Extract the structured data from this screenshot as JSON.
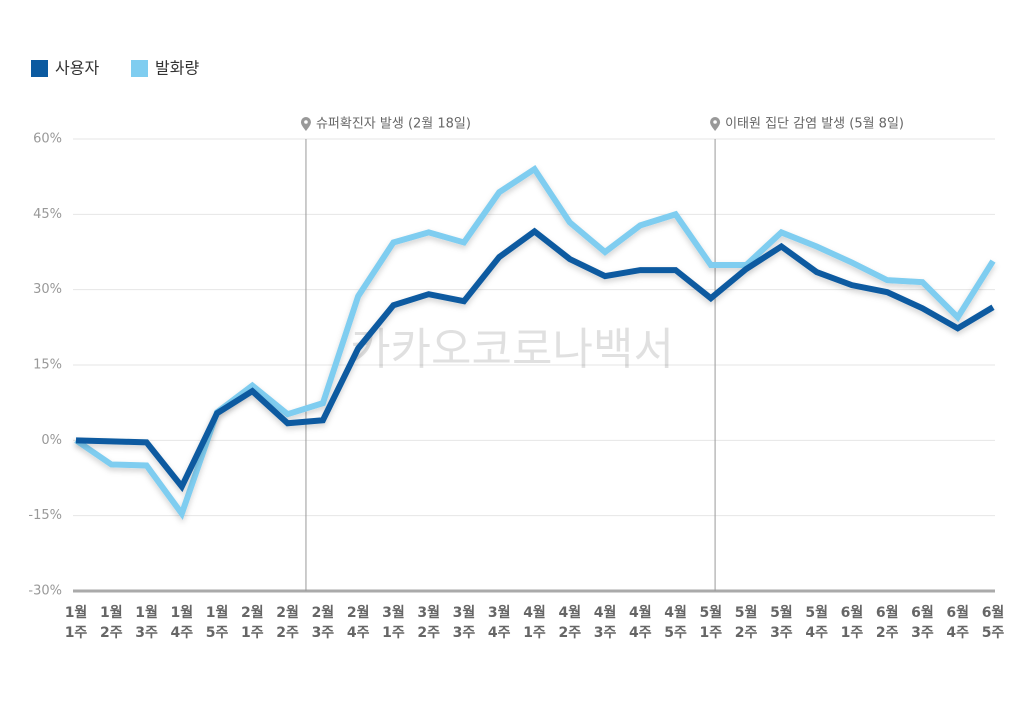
{
  "chart_data": {
    "type": "line",
    "legend_position": "top-left",
    "grid": true,
    "watermark": "카카오코로나백서",
    "categories": [
      [
        "1월",
        "1주"
      ],
      [
        "1월",
        "2주"
      ],
      [
        "1월",
        "3주"
      ],
      [
        "1월",
        "4주"
      ],
      [
        "1월",
        "5주"
      ],
      [
        "2월",
        "1주"
      ],
      [
        "2월",
        "2주"
      ],
      [
        "2월",
        "3주"
      ],
      [
        "2월",
        "4주"
      ],
      [
        "3월",
        "1주"
      ],
      [
        "3월",
        "2주"
      ],
      [
        "3월",
        "3주"
      ],
      [
        "3월",
        "4주"
      ],
      [
        "4월",
        "1주"
      ],
      [
        "4월",
        "2주"
      ],
      [
        "4월",
        "3주"
      ],
      [
        "4월",
        "4주"
      ],
      [
        "4월",
        "5주"
      ],
      [
        "5월",
        "1주"
      ],
      [
        "5월",
        "2주"
      ],
      [
        "5월",
        "3주"
      ],
      [
        "5월",
        "4주"
      ],
      [
        "6월",
        "1주"
      ],
      [
        "6월",
        "2주"
      ],
      [
        "6월",
        "3주"
      ],
      [
        "6월",
        "4주"
      ],
      [
        "6월",
        "5주"
      ]
    ],
    "series": [
      {
        "name": "사용자",
        "color": "#0b5aa0",
        "values": [
          0,
          -0.2,
          -0.4,
          -9.2,
          5.4,
          9.8,
          3.4,
          4.0,
          18.3,
          26.9,
          29.1,
          27.7,
          36.5,
          41.6,
          36.1,
          32.7,
          33.9,
          33.9,
          28.3,
          34.1,
          38.6,
          33.5,
          30.9,
          29.5,
          26.3,
          22.3,
          26.5
        ]
      },
      {
        "name": "발화량",
        "color": "#7fcdf0",
        "values": [
          0,
          -4.8,
          -5.0,
          -14.6,
          5.6,
          10.9,
          5.2,
          7.4,
          28.7,
          39.4,
          41.4,
          39.4,
          49.4,
          54.0,
          43.4,
          37.5,
          42.8,
          45.0,
          34.9,
          34.9,
          41.4,
          38.6,
          35.4,
          31.9,
          31.5,
          24.5,
          35.7
        ]
      }
    ],
    "ylim": [
      -30,
      60
    ],
    "yticks": [
      {
        "value": -30,
        "label": "-30%"
      },
      {
        "value": -15,
        "label": "-15%"
      },
      {
        "value": 0,
        "label": "0%"
      },
      {
        "value": 15,
        "label": "15%"
      },
      {
        "value": 30,
        "label": "30%"
      },
      {
        "value": 45,
        "label": "45%"
      },
      {
        "value": 60,
        "label": "60%"
      }
    ],
    "annotations": [
      {
        "x": 6.52,
        "text": "슈퍼확진자 발생 (2월 18일)"
      },
      {
        "x": 18.12,
        "text": "이태원 집단 감염 발생 (5월 8일)"
      }
    ]
  }
}
